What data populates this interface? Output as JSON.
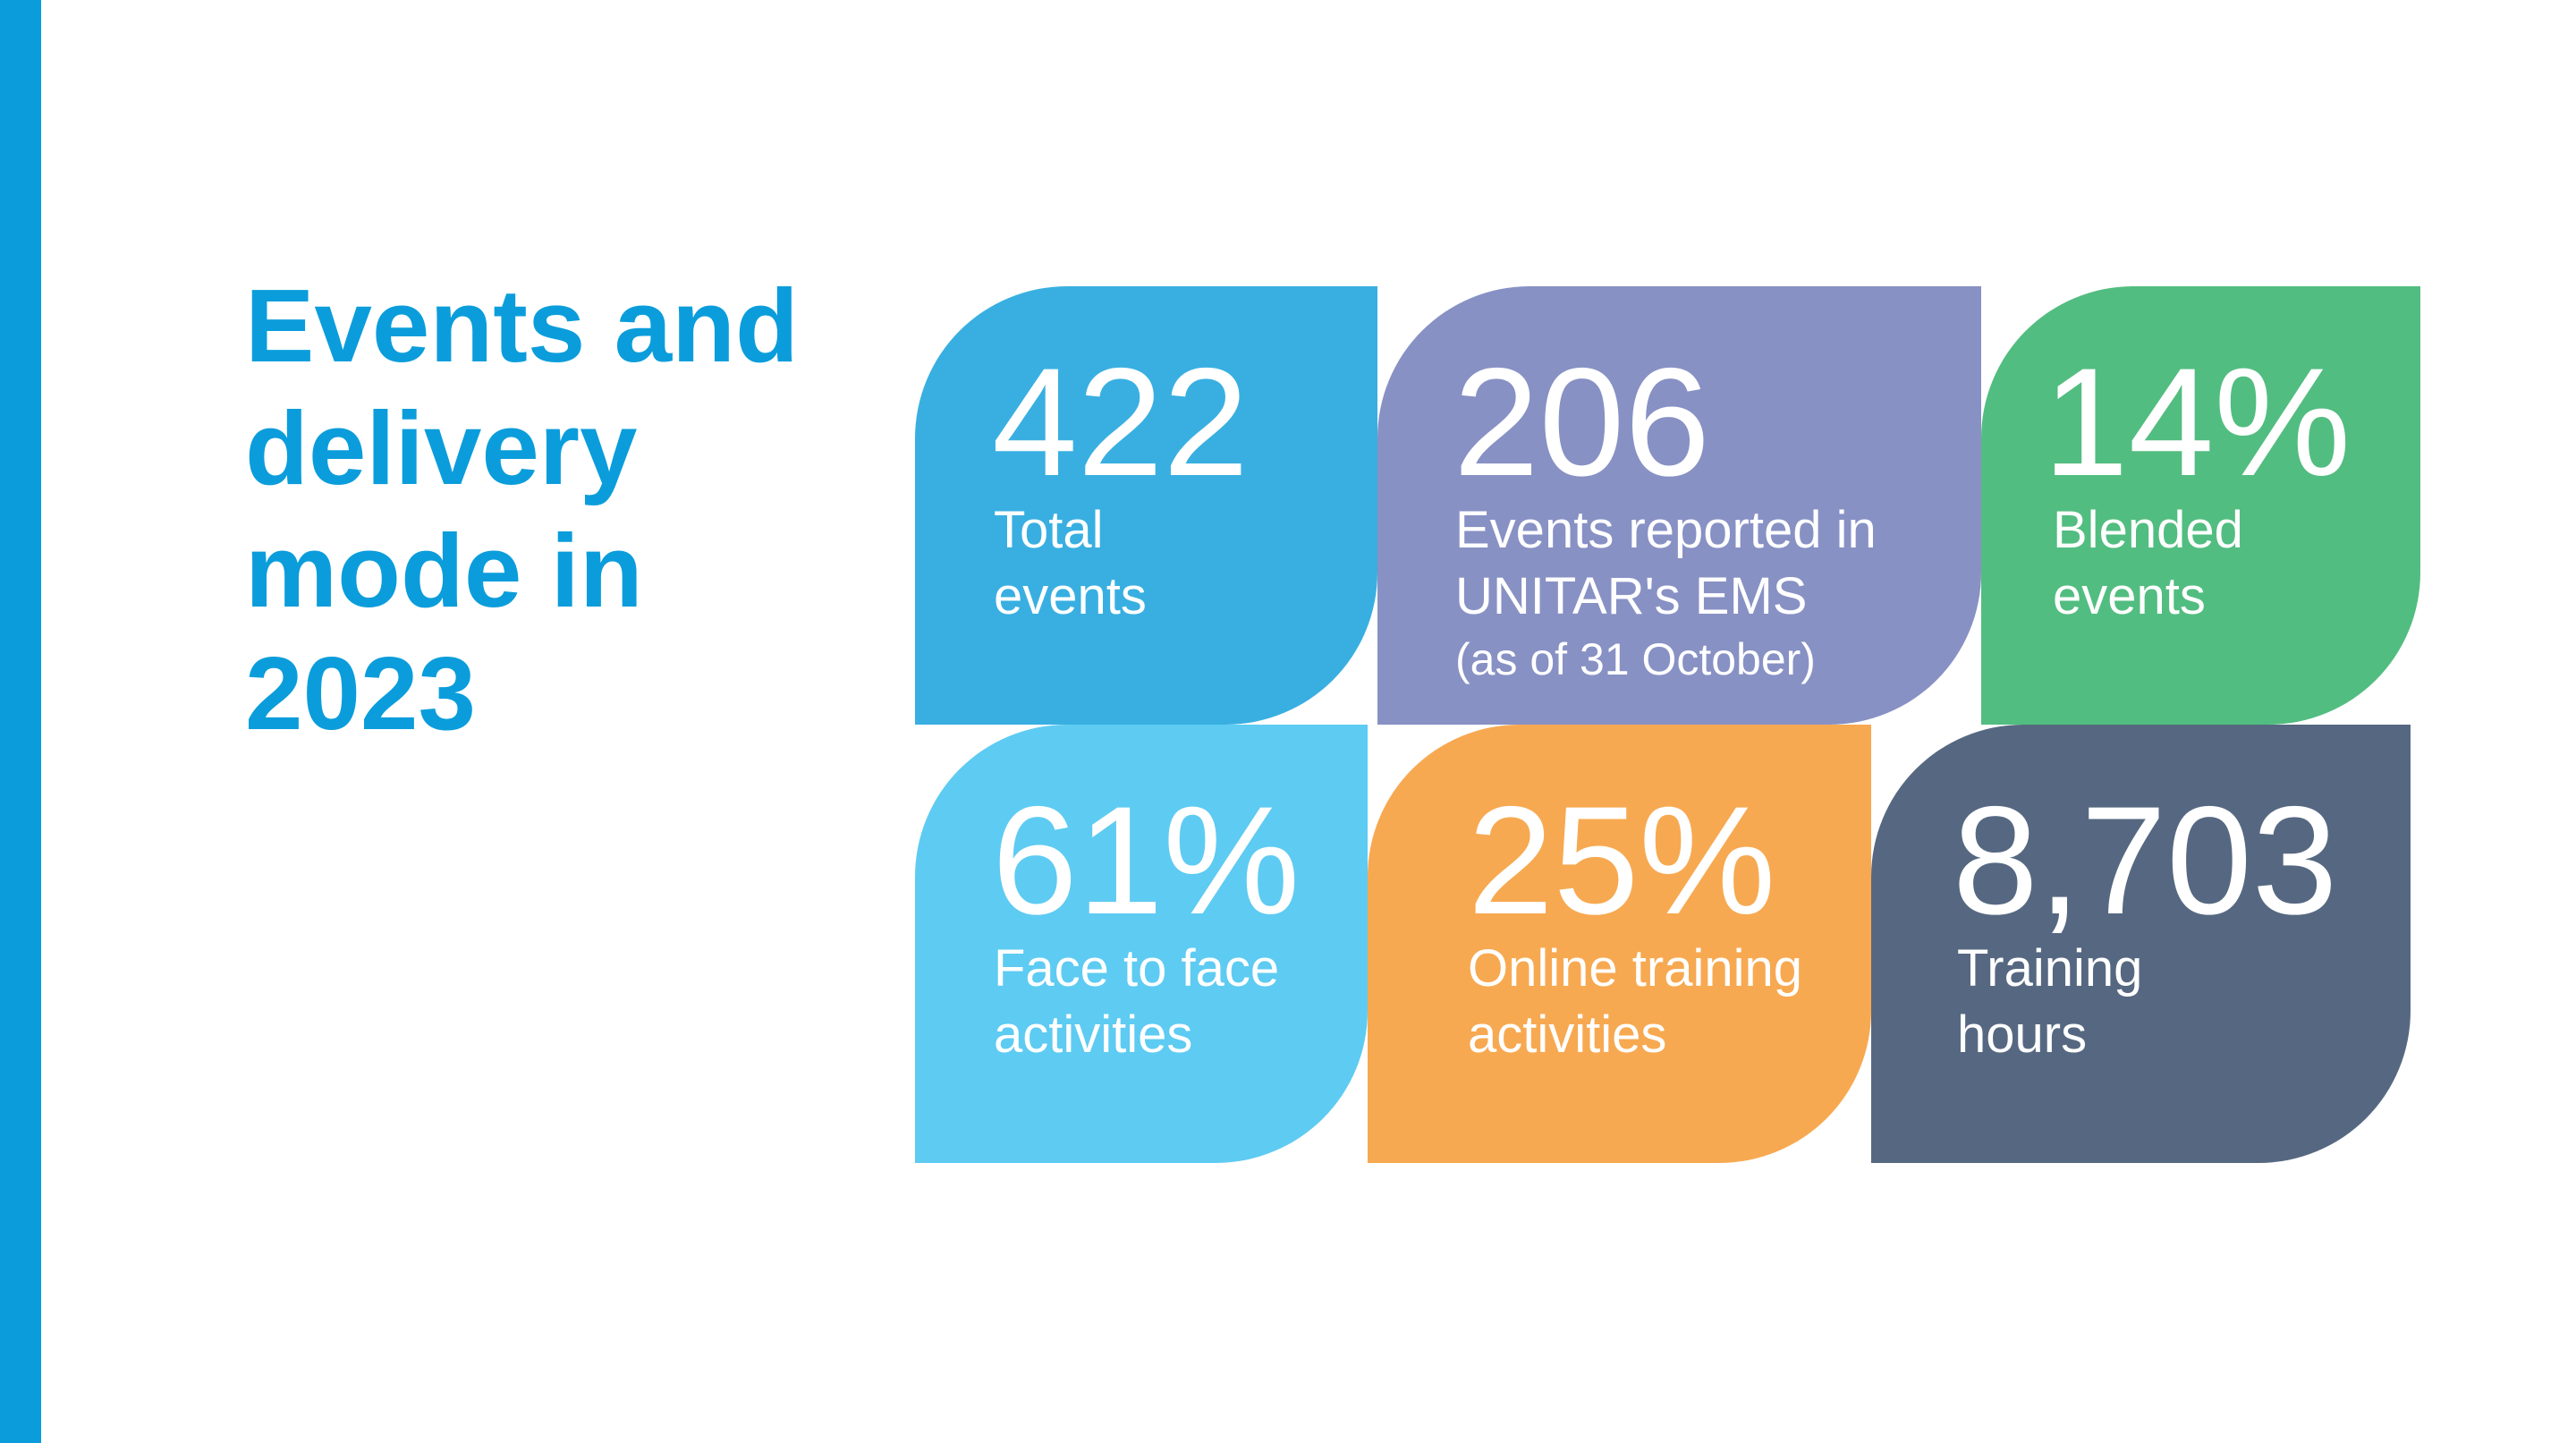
{
  "colors": {
    "accent": "#0b9ddb",
    "total_events": "#39afe1",
    "events_reported": "#8891c4",
    "blended": "#52bd80",
    "face_to_face": "#5ecbf2",
    "online": "#f7a951",
    "training_hours": "#566881"
  },
  "title": {
    "line1": "Events and",
    "line2": "delivery",
    "line3": "mode in",
    "line4": "2023"
  },
  "stats": {
    "total_events": {
      "value": "422",
      "label_line1": "Total",
      "label_line2": "events"
    },
    "events_reported": {
      "value": "206",
      "label_line1": "Events reported in",
      "label_line2": "UNITAR's EMS",
      "note": "(as of 31 October)"
    },
    "blended": {
      "value": "14%",
      "label_line1": "Blended",
      "label_line2": "events"
    },
    "face_to_face": {
      "value": "61%",
      "label_line1": "Face to face",
      "label_line2": "activities"
    },
    "online": {
      "value": "25%",
      "label_line1": "Online training",
      "label_line2": "activities"
    },
    "training_hours": {
      "value": "8,703",
      "label_line1": "Training",
      "label_line2": "hours"
    }
  }
}
